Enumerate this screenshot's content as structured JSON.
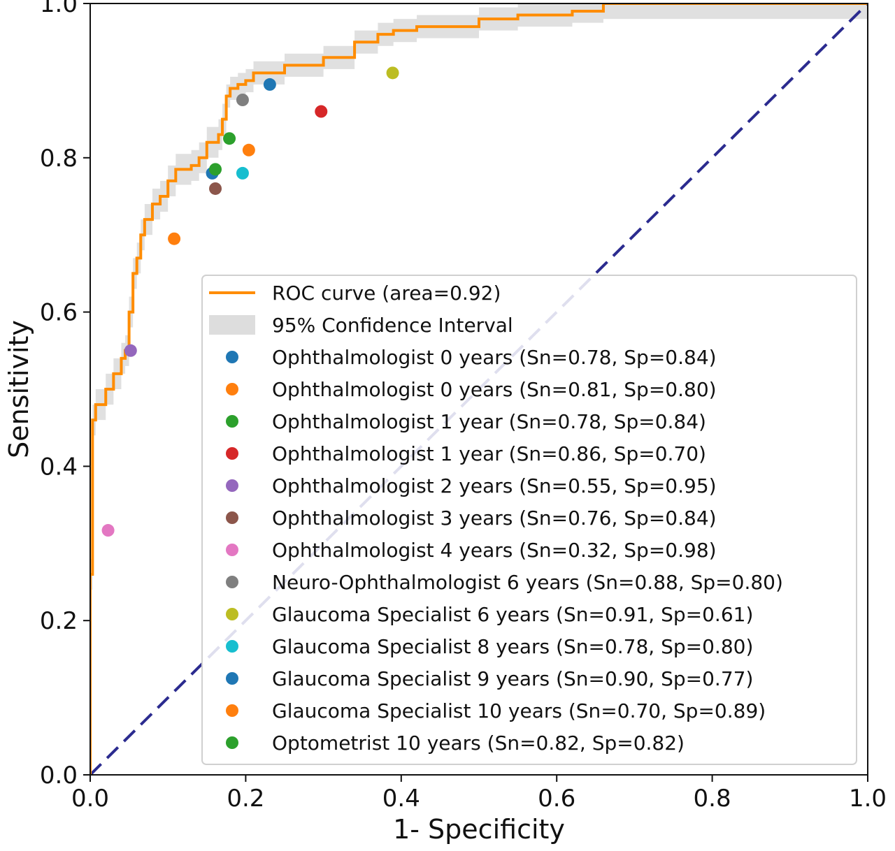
{
  "chart_data": {
    "type": "scatter",
    "title": "",
    "xlabel": "1- Specificity",
    "ylabel": "Sensitivity",
    "xlim": [
      0.0,
      1.0
    ],
    "ylim": [
      0.0,
      1.0
    ],
    "x_ticks": [
      "0.0",
      "0.2",
      "0.4",
      "0.6",
      "0.8",
      "1.0"
    ],
    "y_ticks": [
      "0.0",
      "0.2",
      "0.4",
      "0.6",
      "0.8",
      "1.0"
    ],
    "grid": false,
    "legend_position": "lower-right",
    "roc_curve": {
      "name": "ROC curve (area=0.92)",
      "color": "#ff8c00",
      "x": [
        0.0,
        0.0,
        0.003,
        0.003,
        0.007,
        0.007,
        0.02,
        0.02,
        0.03,
        0.03,
        0.04,
        0.04,
        0.045,
        0.045,
        0.05,
        0.05,
        0.055,
        0.055,
        0.06,
        0.06,
        0.065,
        0.065,
        0.07,
        0.07,
        0.08,
        0.08,
        0.09,
        0.09,
        0.1,
        0.1,
        0.11,
        0.11,
        0.13,
        0.13,
        0.14,
        0.14,
        0.15,
        0.15,
        0.165,
        0.165,
        0.17,
        0.17,
        0.175,
        0.175,
        0.18,
        0.18,
        0.19,
        0.19,
        0.2,
        0.2,
        0.21,
        0.21,
        0.25,
        0.25,
        0.3,
        0.3,
        0.34,
        0.34,
        0.37,
        0.37,
        0.39,
        0.39,
        0.42,
        0.42,
        0.45,
        0.45,
        0.5,
        0.5,
        0.55,
        0.55,
        0.6,
        0.6,
        0.62,
        0.62,
        0.66,
        0.66,
        0.75,
        0.75,
        0.88,
        0.88,
        1.0
      ],
      "y": [
        0.0,
        0.26,
        0.26,
        0.46,
        0.46,
        0.48,
        0.48,
        0.5,
        0.5,
        0.52,
        0.52,
        0.54,
        0.54,
        0.55,
        0.55,
        0.6,
        0.6,
        0.65,
        0.65,
        0.67,
        0.67,
        0.7,
        0.7,
        0.72,
        0.72,
        0.74,
        0.74,
        0.75,
        0.75,
        0.77,
        0.77,
        0.785,
        0.785,
        0.79,
        0.79,
        0.8,
        0.8,
        0.82,
        0.82,
        0.83,
        0.83,
        0.85,
        0.85,
        0.88,
        0.88,
        0.89,
        0.89,
        0.895,
        0.895,
        0.9,
        0.9,
        0.91,
        0.91,
        0.92,
        0.92,
        0.93,
        0.93,
        0.95,
        0.95,
        0.96,
        0.96,
        0.965,
        0.965,
        0.97,
        0.97,
        0.97,
        0.97,
        0.98,
        0.98,
        0.985,
        0.985,
        0.985,
        0.985,
        0.99,
        0.99,
        1.0,
        1.0,
        1.0,
        1.0,
        1.0,
        1.0
      ]
    },
    "confidence_interval": {
      "name": "95% Confidence Interval",
      "color": "#dddddd",
      "x": [
        0.0,
        0.0,
        0.003,
        0.003,
        0.007,
        0.007,
        0.02,
        0.02,
        0.03,
        0.03,
        0.04,
        0.04,
        0.045,
        0.045,
        0.05,
        0.05,
        0.055,
        0.055,
        0.06,
        0.06,
        0.065,
        0.065,
        0.07,
        0.07,
        0.08,
        0.08,
        0.09,
        0.09,
        0.1,
        0.1,
        0.11,
        0.11,
        0.13,
        0.13,
        0.14,
        0.14,
        0.15,
        0.15,
        0.165,
        0.165,
        0.17,
        0.17,
        0.175,
        0.175,
        0.18,
        0.18,
        0.19,
        0.19,
        0.2,
        0.2,
        0.21,
        0.21,
        0.25,
        0.25,
        0.3,
        0.3,
        0.34,
        0.34,
        0.37,
        0.37,
        0.39,
        0.39,
        0.42,
        0.42,
        0.45,
        0.45,
        0.5,
        0.5,
        0.55,
        0.55,
        0.6,
        0.6,
        0.62,
        0.62,
        0.66,
        0.66,
        0.75,
        0.75,
        0.88,
        0.88,
        1.0
      ],
      "lower": [
        0.0,
        0.24,
        0.24,
        0.44,
        0.44,
        0.46,
        0.46,
        0.48,
        0.48,
        0.5,
        0.5,
        0.52,
        0.52,
        0.53,
        0.53,
        0.58,
        0.58,
        0.63,
        0.63,
        0.65,
        0.65,
        0.68,
        0.68,
        0.7,
        0.7,
        0.72,
        0.72,
        0.73,
        0.73,
        0.75,
        0.75,
        0.765,
        0.765,
        0.77,
        0.77,
        0.78,
        0.78,
        0.8,
        0.8,
        0.81,
        0.81,
        0.83,
        0.83,
        0.865,
        0.865,
        0.875,
        0.875,
        0.88,
        0.88,
        0.885,
        0.885,
        0.895,
        0.895,
        0.905,
        0.905,
        0.915,
        0.915,
        0.935,
        0.935,
        0.945,
        0.945,
        0.95,
        0.95,
        0.955,
        0.955,
        0.955,
        0.955,
        0.965,
        0.965,
        0.97,
        0.97,
        0.97,
        0.97,
        0.975,
        0.975,
        0.98,
        0.98,
        0.98,
        0.98,
        0.98,
        0.98
      ],
      "upper": [
        0.0,
        0.28,
        0.28,
        0.48,
        0.48,
        0.5,
        0.5,
        0.52,
        0.52,
        0.54,
        0.54,
        0.56,
        0.56,
        0.57,
        0.57,
        0.62,
        0.62,
        0.67,
        0.67,
        0.69,
        0.69,
        0.72,
        0.72,
        0.74,
        0.74,
        0.76,
        0.76,
        0.77,
        0.77,
        0.79,
        0.79,
        0.805,
        0.805,
        0.81,
        0.81,
        0.82,
        0.82,
        0.84,
        0.84,
        0.85,
        0.85,
        0.87,
        0.87,
        0.895,
        0.895,
        0.905,
        0.905,
        0.91,
        0.91,
        0.915,
        0.915,
        0.925,
        0.925,
        0.935,
        0.935,
        0.945,
        0.945,
        0.965,
        0.965,
        0.975,
        0.975,
        0.98,
        0.98,
        0.985,
        0.985,
        0.985,
        0.985,
        0.995,
        0.995,
        1.0,
        1.0,
        1.0,
        1.0,
        1.005,
        1.005,
        1.02,
        1.02,
        1.02,
        1.02,
        1.025,
        1.025
      ]
    },
    "reference_line": {
      "color": "#2b2b8f",
      "x": [
        0.0,
        1.0
      ],
      "y": [
        0.0,
        1.0
      ]
    },
    "points": [
      {
        "label": "Ophthalmologist 0 years (Sn=0.78, Sp=0.84)",
        "x": 0.157,
        "y": 0.78,
        "color": "#1f77b4"
      },
      {
        "label": "Ophthalmologist 0 years  (Sn=0.81, Sp=0.80)",
        "x": 0.204,
        "y": 0.81,
        "color": "#ff7f0e"
      },
      {
        "label": "Ophthalmologist 1 year (Sn=0.78, Sp=0.84)",
        "x": 0.161,
        "y": 0.785,
        "color": "#2ca02c"
      },
      {
        "label": "Ophthalmologist 1 year  (Sn=0.86, Sp=0.70)",
        "x": 0.297,
        "y": 0.86,
        "color": "#d62728"
      },
      {
        "label": "Ophthalmologist 2 years (Sn=0.55, Sp=0.95)",
        "x": 0.052,
        "y": 0.55,
        "color": "#9467bd"
      },
      {
        "label": "Ophthalmologist 3 years (Sn=0.76, Sp=0.84)",
        "x": 0.161,
        "y": 0.76,
        "color": "#8c564b"
      },
      {
        "label": "Ophthalmologist 4 years (Sn=0.32, Sp=0.98)",
        "x": 0.023,
        "y": 0.317,
        "color": "#e377c2"
      },
      {
        "label": "Neuro-Ophthalmologist 6 years (Sn=0.88, Sp=0.80)",
        "x": 0.196,
        "y": 0.875,
        "color": "#7f7f7f"
      },
      {
        "label": "Glaucoma Specialist 6 years (Sn=0.91, Sp=0.61)",
        "x": 0.389,
        "y": 0.91,
        "color": "#bcbd22"
      },
      {
        "label": "Glaucoma Specialist 8 years (Sn=0.78, Sp=0.80)",
        "x": 0.196,
        "y": 0.78,
        "color": "#17becf"
      },
      {
        "label": "Glaucoma Specialist 9 years (Sn=0.90, Sp=0.77)",
        "x": 0.231,
        "y": 0.895,
        "color": "#1f77b4"
      },
      {
        "label": "Glaucoma Specialist 10 years (Sn=0.70, Sp=0.89)",
        "x": 0.108,
        "y": 0.695,
        "color": "#ff7f0e"
      },
      {
        "label": "Optometrist 10 years (Sn=0.82, Sp=0.82)",
        "x": 0.179,
        "y": 0.825,
        "color": "#2ca02c"
      }
    ]
  }
}
